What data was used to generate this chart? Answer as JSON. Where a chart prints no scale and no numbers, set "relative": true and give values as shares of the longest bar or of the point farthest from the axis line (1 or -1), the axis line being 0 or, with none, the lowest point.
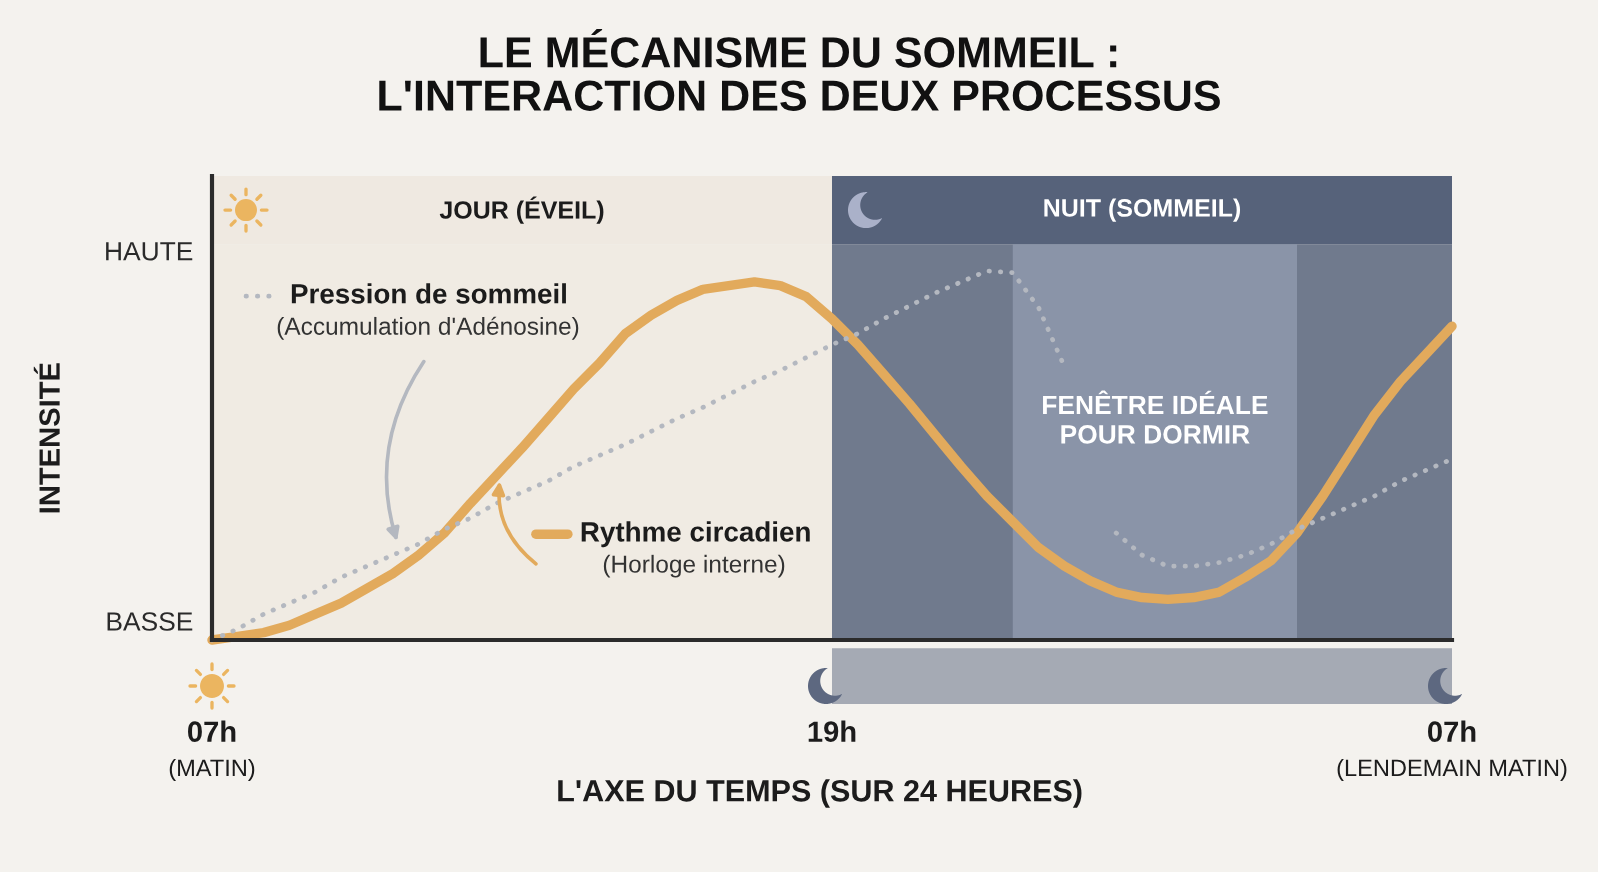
{
  "chart_data": {
    "type": "line",
    "relative": true,
    "legend": "top left",
    "title": "LE MÉCANISME DU SOMMEIL :\nL'INTERACTION DES DEUX PROCESSUS",
    "xlabel": "L'AXE DU TEMPS (SUR 24 HEURES)",
    "ylabel": "INTENSITÉ",
    "categories": [
      "07h",
      null,
      null,
      null,
      null,
      null,
      null,
      null,
      null,
      null,
      null,
      null,
      null,
      null,
      null,
      null,
      null,
      null,
      null,
      null,
      null,
      null,
      null,
      null,
      "19h",
      null,
      null,
      null,
      null,
      null,
      null,
      null,
      null,
      null,
      null,
      null,
      null,
      null,
      null,
      null,
      null,
      null,
      null,
      null,
      null,
      null,
      null,
      null,
      "07h"
    ],
    "series": [
      {
        "name": "Rythme circadien\n(Horloge interne)",
        "color": "#e2aa5c",
        "values": [
          0,
          0.01,
          0.02,
          0.04,
          0.07,
          0.1,
          0.14,
          0.18,
          0.23,
          0.29,
          0.37,
          0.445,
          0.52,
          0.6,
          0.68,
          0.75,
          0.83,
          0.88,
          0.92,
          0.95,
          0.96,
          0.97,
          0.96,
          0.93,
          0.87,
          0.8,
          0.72,
          0.64,
          0.555,
          0.47,
          0.39,
          0.32,
          0.25,
          0.2,
          0.16,
          0.13,
          0.115,
          0.11,
          0.115,
          0.13,
          0.17,
          0.215,
          0.29,
          0.39,
          0.5,
          0.61,
          0.7,
          0.775,
          0.85
        ]
      },
      {
        "name": "Pression de sommeil\n(Accumulation d'Adénosine)",
        "color": "#b4b8c0",
        "line_style": "dotted",
        "values": [
          0,
          0.03,
          0.07,
          0.1,
          0.13,
          0.17,
          0.2,
          0.23,
          0.26,
          0.3,
          0.33,
          0.37,
          0.4,
          0.43,
          0.47,
          0.5,
          0.53,
          0.565,
          0.6,
          0.63,
          0.665,
          0.7,
          0.73,
          0.765,
          0.8,
          0.83,
          0.87,
          0.905,
          0.94,
          0.97,
          1,
          0.995,
          0.9,
          0.74,
          null,
          0.29,
          0.23,
          0.2,
          0.2,
          0.21,
          0.23,
          0.26,
          0.3,
          0.33,
          0.36,
          0.39,
          0.43,
          0.46,
          0.49
        ]
      }
    ],
    "bands": [
      {
        "axis": "x",
        "from": "07h",
        "to": "19h",
        "label": "JOUR (ÉVEIL)",
        "color": "#efe9e1"
      }
    ],
    "annotations": [
      "HAUTE",
      "BASSE",
      "NUIT (SOMMEIL)",
      "FENÊTRE IDÉALE\nPOUR DORMIR",
      "(MATIN)",
      "(LENDEMAIN MATIN)"
    ]
  }
}
